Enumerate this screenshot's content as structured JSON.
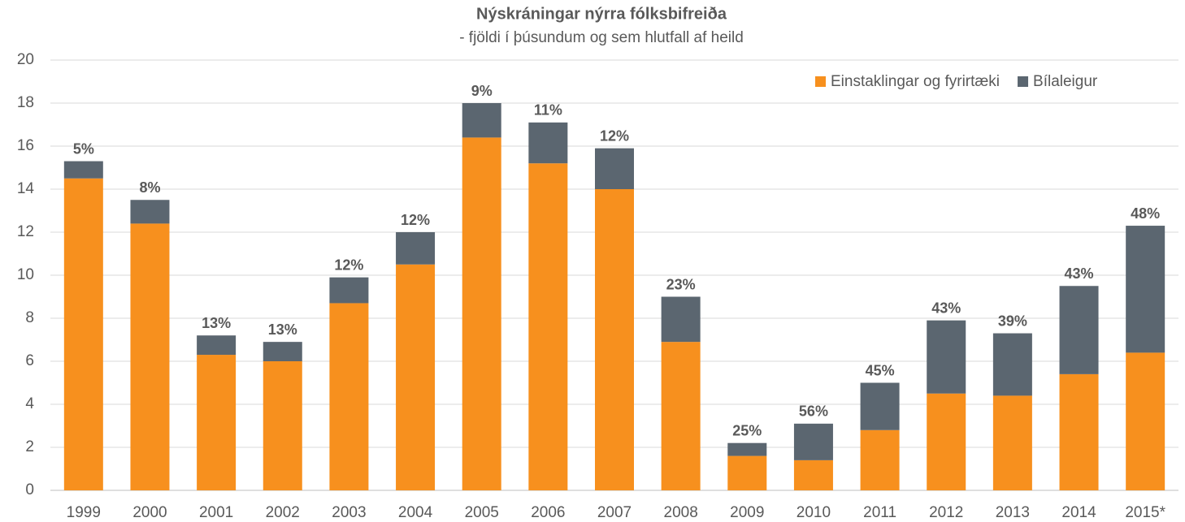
{
  "chart_data": {
    "type": "stacked_bar",
    "title": "Nýskráningar nýrra fólksbifreiða",
    "subtitle": "- fjöldi í þúsundum og sem hlutfall af heild",
    "categories": [
      "1999",
      "2000",
      "2001",
      "2002",
      "2003",
      "2004",
      "2005",
      "2006",
      "2007",
      "2008",
      "2009",
      "2010",
      "2011",
      "2012",
      "2013",
      "2014",
      "2015*"
    ],
    "series": [
      {
        "name": "Einstaklingar og fyrirtæki",
        "color": "#f7901e",
        "values": [
          14.5,
          12.4,
          6.3,
          6.0,
          8.7,
          10.5,
          16.4,
          15.2,
          14.0,
          6.9,
          1.6,
          1.4,
          2.8,
          4.5,
          4.4,
          5.4,
          6.4
        ]
      },
      {
        "name": "Bílaleigur",
        "color": "#5b6670",
        "values": [
          0.8,
          1.1,
          0.9,
          0.9,
          1.2,
          1.5,
          1.6,
          1.9,
          1.9,
          2.1,
          0.6,
          1.7,
          2.2,
          3.4,
          2.9,
          4.1,
          5.9
        ]
      }
    ],
    "share_labels": [
      "5%",
      "8%",
      "13%",
      "13%",
      "12%",
      "12%",
      "9%",
      "11%",
      "12%",
      "23%",
      "25%",
      "56%",
      "45%",
      "43%",
      "39%",
      "43%",
      "48%"
    ],
    "ylim": [
      0,
      20
    ],
    "yticks": [
      0,
      2,
      4,
      6,
      8,
      10,
      12,
      14,
      16,
      18,
      20
    ],
    "grid": true,
    "legend": "top-right"
  }
}
